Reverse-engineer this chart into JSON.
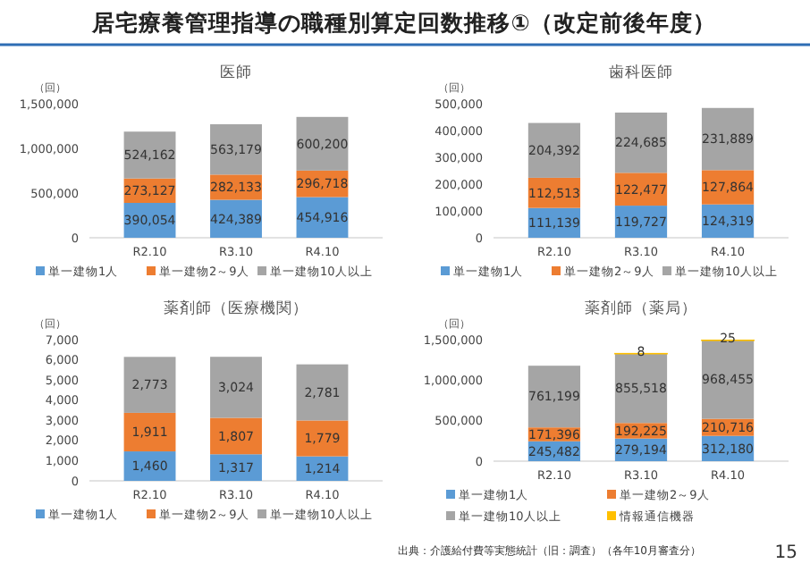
{
  "chart_data": [
    {
      "type": "bar",
      "stacked": true,
      "title": "医師",
      "ylabel": "（回）",
      "annotations": [
        "居宅療養管理指導の職種別算定回数推移①（改定前後年度）"
      ],
      "categories": [
        "R2.10",
        "R3.10",
        "R4.10"
      ],
      "ylim": [
        0,
        1500000
      ],
      "yticks": [
        {
          "value": 0,
          "label": "0"
        },
        {
          "value": 500000,
          "label": "500,000"
        },
        {
          "value": 1000000,
          "label": "1,000,000"
        },
        {
          "value": 1500000,
          "label": "1,500,000"
        }
      ],
      "grid": false,
      "legend": "bottom",
      "series": [
        {
          "name": "単一建物1人",
          "color": "#5b9bd5",
          "values": [
            390054,
            424389,
            454916
          ],
          "value_labels": [
            "390,054",
            "424,389",
            "454,916"
          ]
        },
        {
          "name": "単一建物2～9人",
          "color": "#ed7d31",
          "values": [
            273127,
            282133,
            296718
          ],
          "value_labels": [
            "273,127",
            "282,133",
            "296,718"
          ]
        },
        {
          "name": "単一建物10人以上",
          "color": "#a5a5a5",
          "values": [
            524162,
            563179,
            600200
          ],
          "value_labels": [
            "524,162",
            "563,179",
            "600,200"
          ]
        }
      ]
    },
    {
      "type": "bar",
      "stacked": true,
      "title": "歯科医師",
      "ylabel": "（回）",
      "categories": [
        "R2.10",
        "R3.10",
        "R4.10"
      ],
      "ylim": [
        0,
        500000
      ],
      "yticks": [
        {
          "value": 0,
          "label": "0"
        },
        {
          "value": 100000,
          "label": "100,000"
        },
        {
          "value": 200000,
          "label": "200,000"
        },
        {
          "value": 300000,
          "label": "300,000"
        },
        {
          "value": 400000,
          "label": "400,000"
        },
        {
          "value": 500000,
          "label": "500,000"
        }
      ],
      "grid": false,
      "legend": "bottom",
      "series": [
        {
          "name": "単一建物1人",
          "color": "#5b9bd5",
          "values": [
            111139,
            119727,
            124319
          ],
          "value_labels": [
            "111,139",
            "119,727",
            "124,319"
          ]
        },
        {
          "name": "単一建物2～9人",
          "color": "#ed7d31",
          "values": [
            112513,
            122477,
            127864
          ],
          "value_labels": [
            "112,513",
            "122,477",
            "127,864"
          ]
        },
        {
          "name": "単一建物10人以上",
          "color": "#a5a5a5",
          "values": [
            204392,
            224685,
            231889
          ],
          "value_labels": [
            "204,392",
            "224,685",
            "231,889"
          ]
        }
      ]
    },
    {
      "type": "bar",
      "stacked": true,
      "title": "薬剤師（医療機関）",
      "ylabel": "（回）",
      "categories": [
        "R2.10",
        "R3.10",
        "R4.10"
      ],
      "ylim": [
        0,
        7000
      ],
      "yticks": [
        {
          "value": 0,
          "label": "0"
        },
        {
          "value": 1000,
          "label": "1,000"
        },
        {
          "value": 2000,
          "label": "2,000"
        },
        {
          "value": 3000,
          "label": "3,000"
        },
        {
          "value": 4000,
          "label": "4,000"
        },
        {
          "value": 5000,
          "label": "5,000"
        },
        {
          "value": 6000,
          "label": "6,000"
        },
        {
          "value": 7000,
          "label": "7,000"
        }
      ],
      "grid": false,
      "legend": "bottom",
      "series": [
        {
          "name": "単一建物1人",
          "color": "#5b9bd5",
          "values": [
            1460,
            1317,
            1214
          ],
          "value_labels": [
            "1,460",
            "1,317",
            "1,214"
          ]
        },
        {
          "name": "単一建物2～9人",
          "color": "#ed7d31",
          "values": [
            1911,
            1807,
            1779
          ],
          "value_labels": [
            "1,911",
            "1,807",
            "1,779"
          ]
        },
        {
          "name": "単一建物10人以上",
          "color": "#a5a5a5",
          "values": [
            2773,
            3024,
            2781
          ],
          "value_labels": [
            "2,773",
            "3,024",
            "2,781"
          ]
        }
      ]
    },
    {
      "type": "bar",
      "stacked": true,
      "title": "薬剤師（薬局）",
      "ylabel": "（回）",
      "annotations": [
        "出典：介護給付費等実態統計（旧：調査）（各年10月審査分）",
        "15"
      ],
      "categories": [
        "R2.10",
        "R3.10",
        "R4.10"
      ],
      "ylim": [
        0,
        1500000
      ],
      "yticks": [
        {
          "value": 0,
          "label": "0"
        },
        {
          "value": 500000,
          "label": "500,000"
        },
        {
          "value": 1000000,
          "label": "1,000,000"
        },
        {
          "value": 1500000,
          "label": "1,500,000"
        }
      ],
      "grid": false,
      "legend": "bottom",
      "series": [
        {
          "name": "単一建物1人",
          "color": "#5b9bd5",
          "values": [
            245482,
            279194,
            312180
          ],
          "value_labels": [
            "245,482",
            "279,194",
            "312,180"
          ]
        },
        {
          "name": "単一建物2～9人",
          "color": "#ed7d31",
          "values": [
            171396,
            192225,
            210716
          ],
          "value_labels": [
            "171,396",
            "192,225",
            "210,716"
          ]
        },
        {
          "name": "単一建物10人以上",
          "color": "#a5a5a5",
          "values": [
            761199,
            855518,
            968455
          ],
          "value_labels": [
            "761,199",
            "855,518",
            "968,455"
          ]
        },
        {
          "name": "情報通信機器",
          "color": "#ffc000",
          "values": [
            null,
            8,
            25
          ],
          "value_labels": [
            null,
            "8",
            "25"
          ]
        }
      ]
    }
  ]
}
